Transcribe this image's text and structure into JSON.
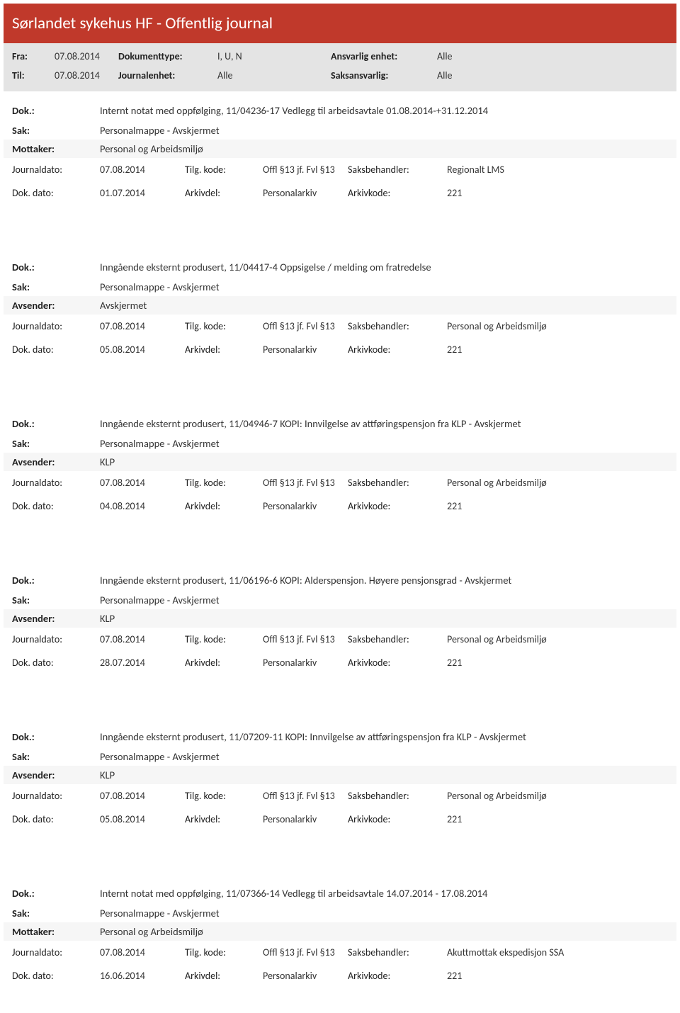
{
  "colors": {
    "header_bg": "#c0392b",
    "filter_bg": "#e4e4e4",
    "shade_bg": "#f6f6f6",
    "text": "#333333",
    "label": "#222222"
  },
  "header_title": "Sørlandet sykehus HF - Offentlig journal",
  "filters": {
    "fra_label": "Fra:",
    "fra_value": "07.08.2014",
    "til_label": "Til:",
    "til_value": "07.08.2014",
    "doktype_label": "Dokumenttype:",
    "doktype_value": "I, U, N",
    "journalenhet_label": "Journalenhet:",
    "journalenhet_value": "Alle",
    "ansvarlig_label": "Ansvarlig enhet:",
    "ansvarlig_value": "Alle",
    "saksansvarlig_label": "Saksansvarlig:",
    "saksansvarlig_value": "Alle"
  },
  "labels": {
    "dok": "Dok.:",
    "sak": "Sak:",
    "mottaker": "Mottaker:",
    "avsender": "Avsender:",
    "journaldato": "Journaldato:",
    "tilgkode": "Tilg. kode:",
    "saksbehandler": "Saksbehandler:",
    "dokdato": "Dok. dato:",
    "arkivdel": "Arkivdel:",
    "arkivkode": "Arkivkode:"
  },
  "entries": [
    {
      "dok": "Internt notat med oppfølging, 11/04236-17 Vedlegg til arbeidsavtale 01.08.2014-+31.12.2014",
      "sak": "Personalmappe - Avskjermet",
      "party_label": "Mottaker:",
      "party_value": "Personal og Arbeidsmiljø",
      "journaldato": "07.08.2014",
      "tilgkode": "Offl §13 jf. Fvl §13",
      "saksbehandler": "Regionalt LMS",
      "dokdato": "01.07.2014",
      "arkivdel": "Personalarkiv",
      "arkivkode": "221"
    },
    {
      "dok": "Inngående eksternt produsert, 11/04417-4 Oppsigelse / melding om fratredelse",
      "sak": "Personalmappe - Avskjermet",
      "party_label": "Avsender:",
      "party_value": "Avskjermet",
      "journaldato": "07.08.2014",
      "tilgkode": "Offl §13 jf. Fvl §13",
      "saksbehandler": "Personal og Arbeidsmiljø",
      "dokdato": "05.08.2014",
      "arkivdel": "Personalarkiv",
      "arkivkode": "221"
    },
    {
      "dok": "Inngående eksternt produsert, 11/04946-7 KOPI: Innvilgelse av attføringspensjon fra KLP - Avskjermet",
      "sak": "Personalmappe - Avskjermet",
      "party_label": "Avsender:",
      "party_value": "KLP",
      "journaldato": "07.08.2014",
      "tilgkode": "Offl §13 jf. Fvl §13",
      "saksbehandler": "Personal og Arbeidsmiljø",
      "dokdato": "04.08.2014",
      "arkivdel": "Personalarkiv",
      "arkivkode": "221"
    },
    {
      "dok": "Inngående eksternt produsert, 11/06196-6 KOPI: Alderspensjon. Høyere pensjonsgrad - Avskjermet",
      "sak": "Personalmappe - Avskjermet",
      "party_label": "Avsender:",
      "party_value": "KLP",
      "journaldato": "07.08.2014",
      "tilgkode": "Offl §13 jf. Fvl §13",
      "saksbehandler": "Personal og Arbeidsmiljø",
      "dokdato": "28.07.2014",
      "arkivdel": "Personalarkiv",
      "arkivkode": "221"
    },
    {
      "dok": "Inngående eksternt produsert, 11/07209-11 KOPI: Innvilgelse av attføringspensjon fra KLP - Avskjermet",
      "sak": "Personalmappe - Avskjermet",
      "party_label": "Avsender:",
      "party_value": "KLP",
      "journaldato": "07.08.2014",
      "tilgkode": "Offl §13 jf. Fvl §13",
      "saksbehandler": "Personal og Arbeidsmiljø",
      "dokdato": "05.08.2014",
      "arkivdel": "Personalarkiv",
      "arkivkode": "221"
    },
    {
      "dok": "Internt notat med oppfølging, 11/07366-14 Vedlegg til arbeidsavtale 14.07.2014 - 17.08.2014",
      "sak": "Personalmappe - Avskjermet",
      "party_label": "Mottaker:",
      "party_value": "Personal og Arbeidsmiljø",
      "journaldato": "07.08.2014",
      "tilgkode": "Offl §13 jf. Fvl §13",
      "saksbehandler": "Akuttmottak ekspedisjon SSA",
      "dokdato": "16.06.2014",
      "arkivdel": "Personalarkiv",
      "arkivkode": "221"
    }
  ]
}
